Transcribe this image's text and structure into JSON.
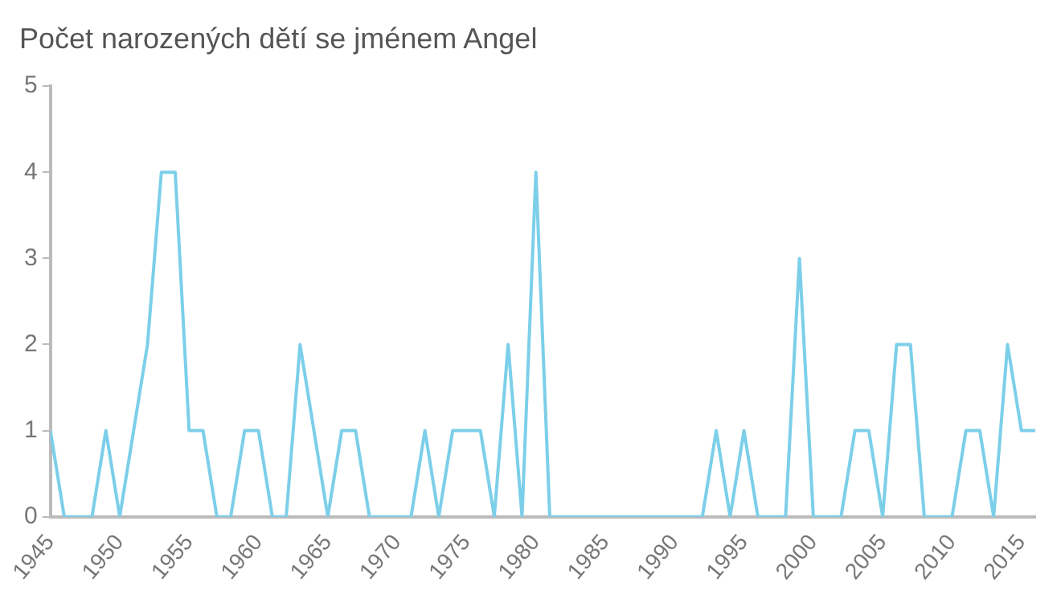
{
  "chart_data": {
    "type": "line",
    "title": "Počet narozených dětí se jménem Angel",
    "x": [
      1945,
      1946,
      1947,
      1948,
      1949,
      1950,
      1951,
      1952,
      1953,
      1954,
      1955,
      1956,
      1957,
      1958,
      1959,
      1960,
      1961,
      1962,
      1963,
      1964,
      1965,
      1966,
      1967,
      1968,
      1969,
      1970,
      1971,
      1972,
      1973,
      1974,
      1975,
      1976,
      1977,
      1978,
      1979,
      1980,
      1981,
      1982,
      1983,
      1984,
      1985,
      1986,
      1987,
      1988,
      1989,
      1990,
      1991,
      1992,
      1993,
      1994,
      1995,
      1996,
      1997,
      1998,
      1999,
      2000,
      2001,
      2002,
      2003,
      2004,
      2005,
      2006,
      2007,
      2008,
      2009,
      2010,
      2011,
      2012,
      2013,
      2014,
      2015,
      2016
    ],
    "series": [
      {
        "color": "#7ccfe9",
        "values": [
          1,
          0,
          0,
          0,
          1,
          0,
          1,
          2,
          4,
          4,
          1,
          1,
          0,
          0,
          1,
          1,
          0,
          0,
          2,
          1,
          0,
          1,
          1,
          0,
          0,
          0,
          0,
          1,
          0,
          1,
          1,
          1,
          0,
          2,
          0,
          4,
          0,
          0,
          0,
          0,
          0,
          0,
          0,
          0,
          0,
          0,
          0,
          0,
          1,
          0,
          1,
          0,
          0,
          0,
          3,
          0,
          0,
          0,
          1,
          1,
          0,
          2,
          2,
          0,
          0,
          0,
          1,
          1,
          0,
          2,
          1,
          1
        ]
      }
    ],
    "xlim": [
      1945,
      2016
    ],
    "xticks": [
      1945,
      1950,
      1955,
      1960,
      1965,
      1970,
      1975,
      1980,
      1985,
      1990,
      1995,
      2000,
      2005,
      2010,
      2015
    ],
    "ylim": [
      0,
      5
    ],
    "yticks": [
      0,
      1,
      2,
      3,
      4,
      5
    ],
    "grid": false,
    "legend": false,
    "marker": "none",
    "line_style": "solid"
  }
}
